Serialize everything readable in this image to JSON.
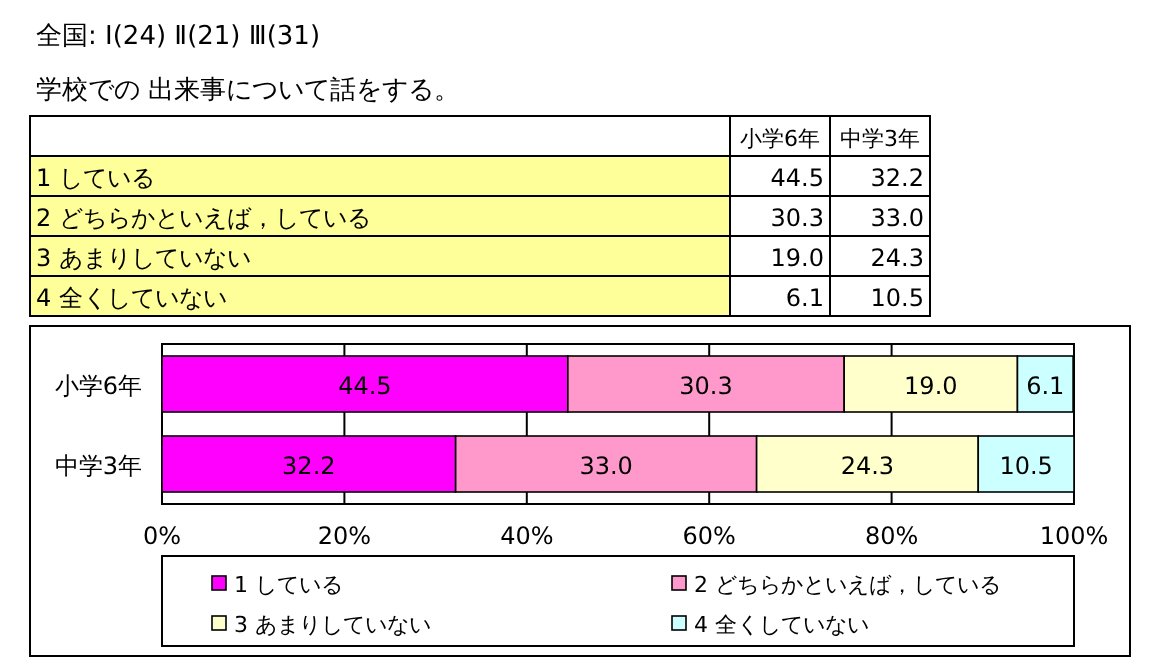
{
  "chart_data": {
    "type": "bar",
    "orientation": "horizontal",
    "stacked": true,
    "title": "全国: Ⅰ(24)  Ⅱ(21)  Ⅲ(31)",
    "subtitle": "学校での 出来事について話をする。",
    "categories": [
      "小学6年",
      "中学3年"
    ],
    "series": [
      {
        "name": "1  している",
        "color": "#ff00ff",
        "values": [
          44.5,
          32.2
        ],
        "value_labels": [
          "44.5",
          "32.2"
        ]
      },
      {
        "name": "2  どちらかといえば，している",
        "color": "#ff99cc",
        "values": [
          30.3,
          33.0
        ],
        "value_labels": [
          "30.3",
          "33.0"
        ]
      },
      {
        "name": "3  あまりしていない",
        "color": "#ffffcc",
        "values": [
          19.0,
          24.3
        ],
        "value_labels": [
          "19.0",
          "24.3"
        ]
      },
      {
        "name": "4  全くしていない",
        "color": "#ccffff",
        "values": [
          6.1,
          10.5
        ],
        "value_labels": [
          "6.1",
          "10.5"
        ]
      }
    ],
    "xlim": [
      0,
      100
    ],
    "xticks": [
      {
        "value": 0,
        "label": "0%"
      },
      {
        "value": 20,
        "label": "20%"
      },
      {
        "value": 40,
        "label": "40%"
      },
      {
        "value": 60,
        "label": "60%"
      },
      {
        "value": 80,
        "label": "80%"
      },
      {
        "value": 100,
        "label": "100%"
      }
    ],
    "grid": "x",
    "legend": "bottom"
  }
}
